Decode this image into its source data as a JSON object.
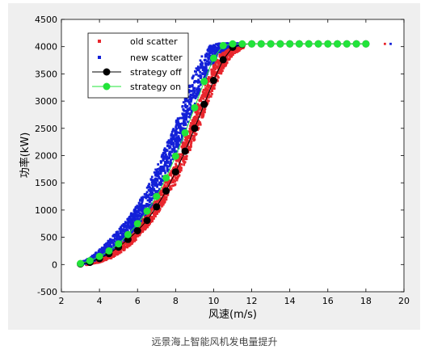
{
  "caption": "远景海上智能风机发电量提升",
  "chart_data": {
    "type": "scatter",
    "xlabel": "风速(m/s)",
    "ylabel": "功率(kW)",
    "xlim": [
      2,
      20
    ],
    "ylim": [
      -500,
      4500
    ],
    "x_ticks": [
      2,
      4,
      6,
      8,
      10,
      12,
      14,
      16,
      18,
      20
    ],
    "y_ticks": [
      -500,
      0,
      500,
      1000,
      1500,
      2000,
      2500,
      3000,
      3500,
      4000,
      4500
    ],
    "grid": false,
    "legend_position": "top-left",
    "series": [
      {
        "name": "old scatter",
        "style": "scatter-square",
        "color": "#e8262d",
        "band": [
          [
            3.3,
            -10,
            20
          ],
          [
            4.0,
            40,
            110
          ],
          [
            4.6,
            110,
            230
          ],
          [
            5.3,
            260,
            430
          ],
          [
            6.0,
            470,
            700
          ],
          [
            6.8,
            800,
            1120
          ],
          [
            7.4,
            1120,
            1470
          ],
          [
            8.0,
            1480,
            1900
          ],
          [
            8.6,
            1950,
            2440
          ],
          [
            9.2,
            2460,
            2980
          ],
          [
            9.6,
            2850,
            3350
          ],
          [
            10.0,
            3200,
            3680
          ],
          [
            10.5,
            3580,
            3960
          ],
          [
            11.0,
            3850,
            4050
          ],
          [
            11.6,
            3980,
            4060
          ]
        ],
        "tail": [
          [
            12,
            4050
          ],
          [
            13,
            4050
          ],
          [
            14,
            4050
          ],
          [
            15,
            4050
          ],
          [
            16,
            4050
          ],
          [
            17,
            4050
          ],
          [
            18,
            4050
          ],
          [
            19,
            4050
          ]
        ]
      },
      {
        "name": "new scatter",
        "style": "scatter-square",
        "color": "#1320d8",
        "band": [
          [
            2.9,
            -10,
            20
          ],
          [
            3.5,
            30,
            120
          ],
          [
            4.1,
            120,
            300
          ],
          [
            4.7,
            260,
            520
          ],
          [
            5.3,
            420,
            760
          ],
          [
            5.9,
            650,
            1050
          ],
          [
            6.5,
            950,
            1420
          ],
          [
            7.1,
            1320,
            1860
          ],
          [
            7.7,
            1780,
            2350
          ],
          [
            8.3,
            2250,
            2870
          ],
          [
            8.8,
            2750,
            3370
          ],
          [
            9.3,
            3200,
            3780
          ],
          [
            9.8,
            3600,
            4020
          ],
          [
            10.3,
            3880,
            4060
          ],
          [
            10.8,
            4000,
            4060
          ],
          [
            11.5,
            4030,
            4060
          ]
        ],
        "tail": [
          [
            12,
            4050
          ],
          [
            13,
            4050
          ],
          [
            14,
            4050
          ],
          [
            15,
            4050
          ],
          [
            16,
            4050
          ],
          [
            17,
            4050
          ],
          [
            18,
            4050
          ],
          [
            19.3,
            4050
          ]
        ]
      },
      {
        "name": "strategy off",
        "style": "line-marker",
        "color": "#000000",
        "x": [
          3.0,
          3.5,
          4.0,
          4.5,
          5.0,
          5.5,
          6.0,
          6.5,
          7.0,
          7.5,
          8.0,
          8.5,
          9.0,
          9.5,
          10.0,
          10.5,
          11.0,
          11.5,
          12.0,
          12.5,
          13.0,
          13.5,
          14.0,
          14.5,
          15.0,
          15.5,
          16.0,
          16.5,
          17.0,
          17.5,
          18.0
        ],
        "y": [
          10,
          40,
          110,
          200,
          320,
          460,
          620,
          810,
          1060,
          1350,
          1700,
          2080,
          2500,
          2940,
          3380,
          3760,
          3990,
          4040,
          4050,
          4050,
          4050,
          4050,
          4050,
          4050,
          4050,
          4050,
          4050,
          4050,
          4050,
          4050,
          4050
        ]
      },
      {
        "name": "strategy on",
        "style": "line-marker",
        "color": "#22e43a",
        "x": [
          3.0,
          3.5,
          4.0,
          4.5,
          5.0,
          5.5,
          6.0,
          6.5,
          7.0,
          7.5,
          8.0,
          8.5,
          9.0,
          9.5,
          10.0,
          10.5,
          11.0,
          11.5,
          12.0,
          12.5,
          13.0,
          13.5,
          14.0,
          14.5,
          15.0,
          15.5,
          16.0,
          16.5,
          17.0,
          17.5,
          18.0
        ],
        "y": [
          20,
          70,
          150,
          250,
          380,
          550,
          750,
          980,
          1250,
          1590,
          1990,
          2420,
          2880,
          3360,
          3790,
          4020,
          4050,
          4050,
          4050,
          4050,
          4050,
          4050,
          4050,
          4050,
          4050,
          4050,
          4050,
          4050,
          4050,
          4050,
          4050
        ]
      }
    ]
  }
}
